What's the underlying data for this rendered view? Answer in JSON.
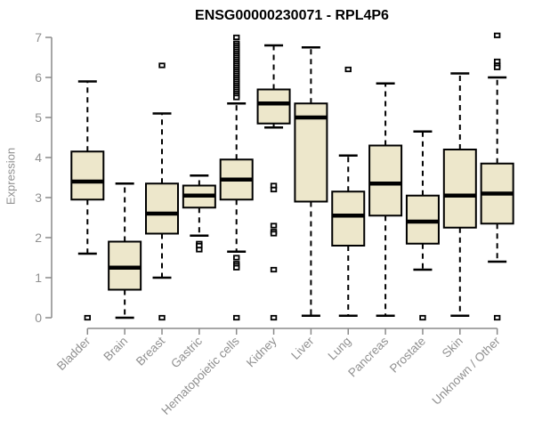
{
  "chart_data": {
    "type": "boxplot",
    "title": "ENSG00000230071 - RPL4P6",
    "xlabel": "",
    "ylabel": "Expression",
    "ylim": [
      0,
      7
    ],
    "yticks": [
      0,
      1,
      2,
      3,
      4,
      5,
      6,
      7
    ],
    "grid": false,
    "legend": "none",
    "whisker_style": "dashed",
    "categories": [
      "Bladder",
      "Brain",
      "Breast",
      "Gastric",
      "Hematopoietic cells",
      "Kidney",
      "Liver",
      "Lung",
      "Pancreas",
      "Prostate",
      "Skin",
      "Unknown / Other"
    ],
    "boxes": [
      {
        "name": "Bladder",
        "low": 1.6,
        "q1": 2.95,
        "median": 3.4,
        "q3": 4.15,
        "high": 5.9,
        "outliers": [
          0
        ]
      },
      {
        "name": "Brain",
        "low": 0.0,
        "q1": 0.7,
        "median": 1.25,
        "q3": 1.9,
        "high": 3.35,
        "outliers": []
      },
      {
        "name": "Breast",
        "low": 1.0,
        "q1": 2.1,
        "median": 2.6,
        "q3": 3.35,
        "high": 5.1,
        "outliers": [
          6.3,
          0
        ]
      },
      {
        "name": "Gastric",
        "low": 2.05,
        "q1": 2.75,
        "median": 3.05,
        "q3": 3.3,
        "high": 3.55,
        "outliers": [
          1.85,
          1.8,
          1.7
        ]
      },
      {
        "name": "Hematopoietic cells",
        "low": 1.65,
        "q1": 2.95,
        "median": 3.45,
        "q3": 3.95,
        "high": 5.35,
        "outliers": [
          7.0,
          6.85,
          6.8,
          6.75,
          6.7,
          6.65,
          6.6,
          6.55,
          6.5,
          6.45,
          6.4,
          6.35,
          6.3,
          6.25,
          6.2,
          6.15,
          6.1,
          6.05,
          6.0,
          5.95,
          5.9,
          5.85,
          5.8,
          5.75,
          5.7,
          5.65,
          5.6,
          5.55,
          5.5,
          1.5,
          1.35,
          1.3,
          1.25,
          0
        ]
      },
      {
        "name": "Kidney",
        "low": 4.75,
        "q1": 4.85,
        "median": 5.35,
        "q3": 5.7,
        "high": 6.8,
        "outliers": [
          3.3,
          3.2,
          2.3,
          2.15,
          2.1,
          1.2,
          0
        ]
      },
      {
        "name": "Liver",
        "low": 0.05,
        "q1": 2.9,
        "median": 5.0,
        "q3": 5.35,
        "high": 6.75,
        "outliers": []
      },
      {
        "name": "Lung",
        "low": 0.05,
        "q1": 1.8,
        "median": 2.55,
        "q3": 3.15,
        "high": 4.05,
        "outliers": [
          6.2
        ]
      },
      {
        "name": "Pancreas",
        "low": 0.05,
        "q1": 2.55,
        "median": 3.35,
        "q3": 4.3,
        "high": 5.85,
        "outliers": []
      },
      {
        "name": "Prostate",
        "low": 1.2,
        "q1": 1.85,
        "median": 2.4,
        "q3": 3.05,
        "high": 4.65,
        "outliers": [
          0
        ]
      },
      {
        "name": "Skin",
        "low": 0.05,
        "q1": 2.25,
        "median": 3.05,
        "q3": 4.2,
        "high": 6.1,
        "outliers": []
      },
      {
        "name": "Unknown / Other",
        "low": 1.4,
        "q1": 2.35,
        "median": 3.1,
        "q3": 3.85,
        "high": 6.0,
        "outliers": [
          7.05,
          6.4,
          6.3,
          6.25,
          0
        ]
      }
    ],
    "colors": {
      "box_fill": "#EDE7CB",
      "box_stroke": "#000000",
      "median": "#000000",
      "whisker": "#000000",
      "outlier_stroke": "#000000",
      "outlier_fill": "#FFFFFF",
      "axis_line": "#8A8A8A",
      "tick_text": "#909090",
      "title_text": "#000000",
      "background": "#FFFFFF"
    }
  }
}
